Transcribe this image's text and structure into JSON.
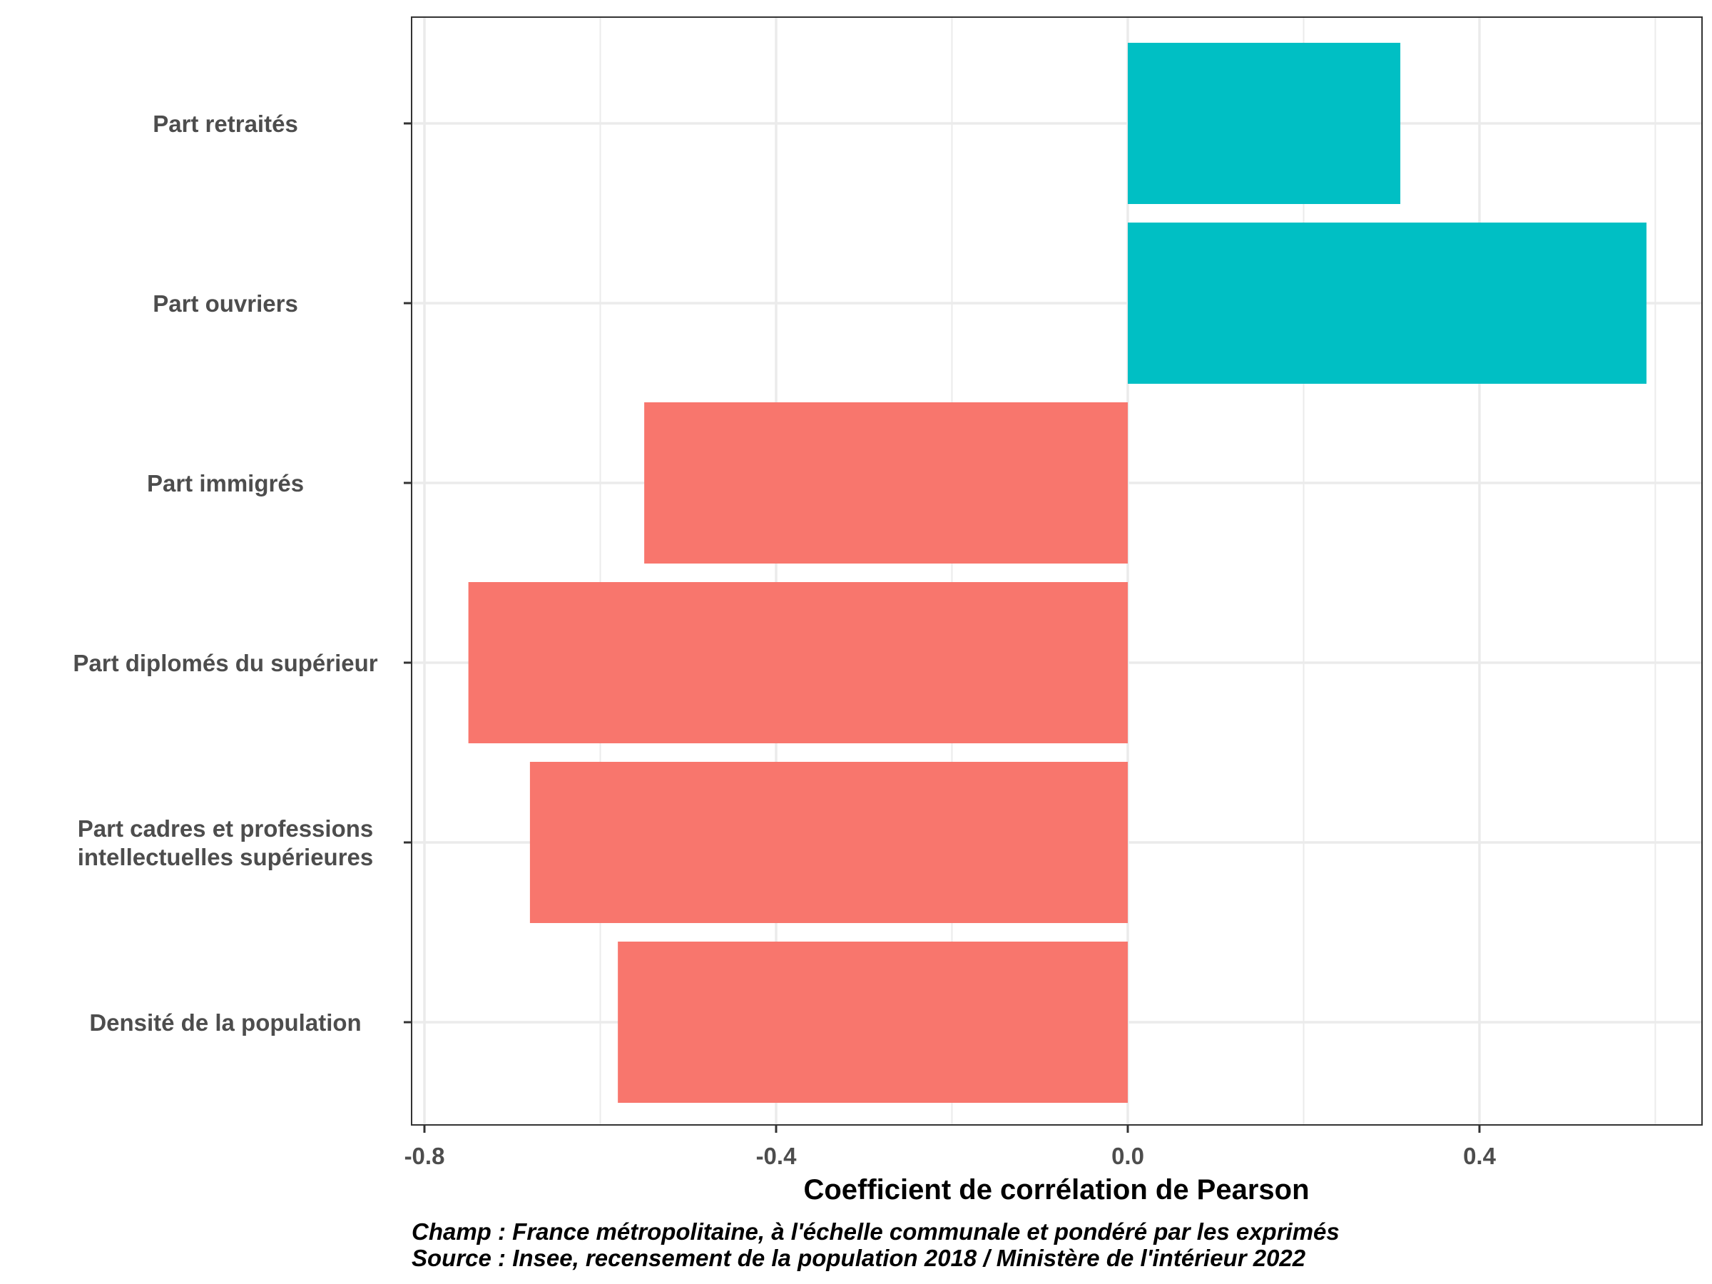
{
  "chart_data": {
    "type": "bar",
    "orientation": "horizontal",
    "categories": [
      "Part retraités",
      "Part ouvriers",
      "Part immigrés",
      "Part diplomés du supérieur",
      "Part cadres et professions intellectuelles supérieures",
      "Densité de la population"
    ],
    "category_label_lines": [
      [
        "Part retraités"
      ],
      [
        "Part ouvriers"
      ],
      [
        "Part immigrés"
      ],
      [
        "Part diplomés du supérieur"
      ],
      [
        "Part cadres et professions",
        "intellectuelles supérieures"
      ],
      [
        "Densité de la population"
      ]
    ],
    "values": [
      0.31,
      0.59,
      -0.55,
      -0.75,
      -0.68,
      -0.58
    ],
    "colors": {
      "positive": "#00BFC4",
      "negative": "#F8766D"
    },
    "xlabel": "Coefficient de corrélation de Pearson",
    "ylabel": "",
    "xlim": [
      -0.82,
      0.66
    ],
    "x_ticks": [
      -0.8,
      -0.4,
      0.0,
      0.4
    ],
    "x_tick_labels": [
      "-0.8",
      "-0.4",
      "0.0",
      "0.4"
    ],
    "x_minor_ticks": [
      -0.6,
      -0.2,
      0.2,
      0.6
    ],
    "grid": true,
    "legend": "none"
  },
  "caption": {
    "line1": "Champ : France métropolitaine, à l'échelle communale et pondéré par les exprimés",
    "line2": "Source : Insee, recensement de la population 2018 / Ministère de l'intérieur 2022"
  }
}
